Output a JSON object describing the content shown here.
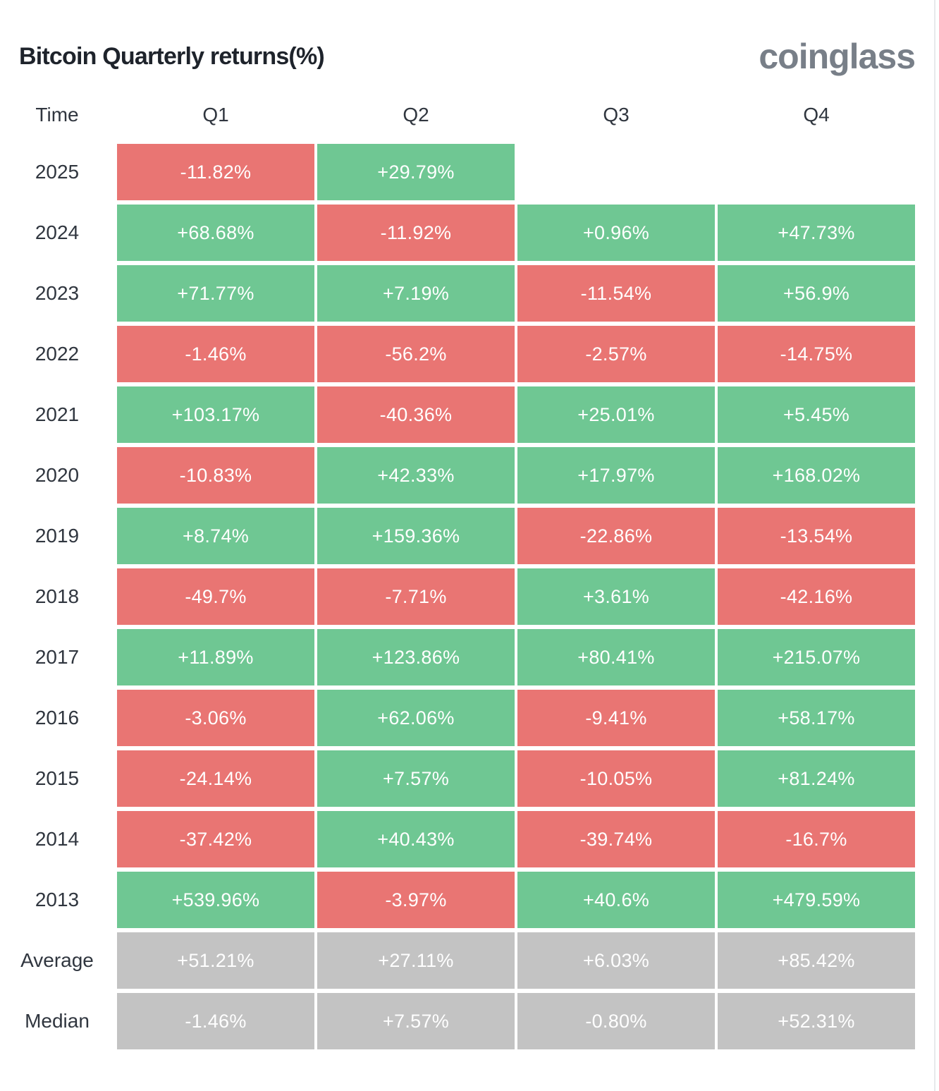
{
  "header": {
    "title": "Bitcoin Quarterly returns(%)",
    "logo_text": "coinglass"
  },
  "colors": {
    "positive": "#6fc793",
    "negative": "#e97573",
    "neutral": "#c3c3c3",
    "label_text": "#30363f",
    "title_text": "#1e232b",
    "logo_text": "#787f88",
    "scroll_track": "#e7e9eb",
    "cell_text": "#ffffff"
  },
  "chart_data": {
    "type": "heatmap",
    "title": "Bitcoin Quarterly returns(%)",
    "columns": [
      "Time",
      "Q1",
      "Q2",
      "Q3",
      "Q4"
    ],
    "value_unit": "percent",
    "color_rule": "green = positive quarterly return, red = negative quarterly return, gray = summary rows (Average/Median)",
    "rows": [
      {
        "label": "2025",
        "summary": false,
        "values": [
          -11.82,
          29.79,
          null,
          null
        ],
        "cells": [
          "-11.82%",
          "+29.79%",
          "",
          ""
        ]
      },
      {
        "label": "2024",
        "summary": false,
        "values": [
          68.68,
          -11.92,
          0.96,
          47.73
        ],
        "cells": [
          "+68.68%",
          "-11.92%",
          "+0.96%",
          "+47.73%"
        ]
      },
      {
        "label": "2023",
        "summary": false,
        "values": [
          71.77,
          7.19,
          -11.54,
          56.9
        ],
        "cells": [
          "+71.77%",
          "+7.19%",
          "-11.54%",
          "+56.9%"
        ]
      },
      {
        "label": "2022",
        "summary": false,
        "values": [
          -1.46,
          -56.2,
          -2.57,
          -14.75
        ],
        "cells": [
          "-1.46%",
          "-56.2%",
          "-2.57%",
          "-14.75%"
        ]
      },
      {
        "label": "2021",
        "summary": false,
        "values": [
          103.17,
          -40.36,
          25.01,
          5.45
        ],
        "cells": [
          "+103.17%",
          "-40.36%",
          "+25.01%",
          "+5.45%"
        ]
      },
      {
        "label": "2020",
        "summary": false,
        "values": [
          -10.83,
          42.33,
          17.97,
          168.02
        ],
        "cells": [
          "-10.83%",
          "+42.33%",
          "+17.97%",
          "+168.02%"
        ]
      },
      {
        "label": "2019",
        "summary": false,
        "values": [
          8.74,
          159.36,
          -22.86,
          -13.54
        ],
        "cells": [
          "+8.74%",
          "+159.36%",
          "-22.86%",
          "-13.54%"
        ]
      },
      {
        "label": "2018",
        "summary": false,
        "values": [
          -49.7,
          -7.71,
          3.61,
          -42.16
        ],
        "cells": [
          "-49.7%",
          "-7.71%",
          "+3.61%",
          "-42.16%"
        ]
      },
      {
        "label": "2017",
        "summary": false,
        "values": [
          11.89,
          123.86,
          80.41,
          215.07
        ],
        "cells": [
          "+11.89%",
          "+123.86%",
          "+80.41%",
          "+215.07%"
        ]
      },
      {
        "label": "2016",
        "summary": false,
        "values": [
          -3.06,
          62.06,
          -9.41,
          58.17
        ],
        "cells": [
          "-3.06%",
          "+62.06%",
          "-9.41%",
          "+58.17%"
        ]
      },
      {
        "label": "2015",
        "summary": false,
        "values": [
          -24.14,
          7.57,
          -10.05,
          81.24
        ],
        "cells": [
          "-24.14%",
          "+7.57%",
          "-10.05%",
          "+81.24%"
        ]
      },
      {
        "label": "2014",
        "summary": false,
        "values": [
          -37.42,
          40.43,
          -39.74,
          -16.7
        ],
        "cells": [
          "-37.42%",
          "+40.43%",
          "-39.74%",
          "-16.7%"
        ]
      },
      {
        "label": "2013",
        "summary": false,
        "values": [
          539.96,
          -3.97,
          40.6,
          479.59
        ],
        "cells": [
          "+539.96%",
          "-3.97%",
          "+40.6%",
          "+479.59%"
        ]
      },
      {
        "label": "Average",
        "summary": true,
        "values": [
          51.21,
          27.11,
          6.03,
          85.42
        ],
        "cells": [
          "+51.21%",
          "+27.11%",
          "+6.03%",
          "+85.42%"
        ]
      },
      {
        "label": "Median",
        "summary": true,
        "values": [
          -1.46,
          7.57,
          -0.8,
          52.31
        ],
        "cells": [
          "-1.46%",
          "+7.57%",
          "-0.80%",
          "+52.31%"
        ]
      }
    ]
  }
}
